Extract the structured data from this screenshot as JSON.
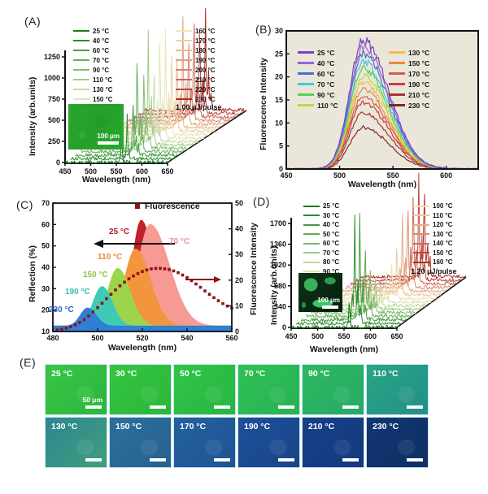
{
  "panels": {
    "A": {
      "label": "(A)"
    },
    "B": {
      "label": "(B)"
    },
    "C": {
      "label": "(C)"
    },
    "D": {
      "label": "(D)"
    },
    "E": {
      "label": "(E)"
    }
  },
  "chart_data": [
    {
      "id": "A",
      "panel_label": "(A)",
      "type": "line",
      "subtype": "waterfall",
      "xlabel": "Wavelength (nm)",
      "ylabel": "Intensity (arb.units)",
      "xlim": [
        450,
        650
      ],
      "xticks": [
        450,
        500,
        550,
        600,
        650
      ],
      "ylim": [
        0,
        1250
      ],
      "yticks": [
        0,
        250,
        500,
        750,
        1000,
        1250
      ],
      "annotation": "1.00 μJ/pulse",
      "inset_scale_label": "100 μm",
      "legend_split": 8,
      "series": [
        {
          "name": "25 °C",
          "color": "#1a7a1f",
          "peak_nm": 560,
          "peak_intensity": 420
        },
        {
          "name": "40 °C",
          "color": "#2e8b2e",
          "peak_nm": 561,
          "peak_intensity": 540
        },
        {
          "name": "60 °C",
          "color": "#4a9d46",
          "peak_nm": 562,
          "peak_intensity": 700
        },
        {
          "name": "70 °C",
          "color": "#66ae5c",
          "peak_nm": 560,
          "peak_intensity": 1250
        },
        {
          "name": "90 °C",
          "color": "#85bd74",
          "peak_nm": 563,
          "peak_intensity": 1020
        },
        {
          "name": "110 °C",
          "color": "#a5cc8c",
          "peak_nm": 561,
          "peak_intensity": 1350
        },
        {
          "name": "130 °C",
          "color": "#c3daa4",
          "peak_nm": 562,
          "peak_intensity": 950
        },
        {
          "name": "150 °C",
          "color": "#dde7ba",
          "peak_nm": 563,
          "peak_intensity": 1300
        },
        {
          "name": "160 °C",
          "color": "#f2e2b4",
          "peak_nm": 564,
          "peak_intensity": 1250
        },
        {
          "name": "170 °C",
          "color": "#edcfa0",
          "peak_nm": 566,
          "peak_intensity": 1050
        },
        {
          "name": "180 °C",
          "color": "#e7ba90",
          "peak_nm": 566,
          "peak_intensity": 980
        },
        {
          "name": "190 °C",
          "color": "#e0a282",
          "peak_nm": 567,
          "peak_intensity": 1230
        },
        {
          "name": "200 °C",
          "color": "#d78672",
          "peak_nm": 568,
          "peak_intensity": 1080
        },
        {
          "name": "210 °C",
          "color": "#ca655a",
          "peak_nm": 568,
          "peak_intensity": 1320
        },
        {
          "name": "220 °C",
          "color": "#bb4742",
          "peak_nm": 569,
          "peak_intensity": 1150
        },
        {
          "name": "230 °C",
          "color": "#ae2d22",
          "peak_nm": 570,
          "peak_intensity": 1180
        }
      ]
    },
    {
      "id": "B",
      "panel_label": "(B)",
      "type": "line",
      "xlabel": "Wavelength (nm)",
      "ylabel": "Fluorescence Intensity",
      "xlim": [
        450,
        630
      ],
      "xticks": [
        450,
        500,
        550,
        600
      ],
      "ylim": [
        0,
        30
      ],
      "yticks": [
        0,
        5,
        10,
        15,
        20,
        25,
        30
      ],
      "peak_nm": 522,
      "plot_bg": "#eae7da",
      "legend_split": 6,
      "series": [
        {
          "name": "25 °C",
          "color": "#7b3fb8",
          "peak_intensity": 28
        },
        {
          "name": "40 °C",
          "color": "#9a63d6",
          "peak_intensity": 26.5
        },
        {
          "name": "60 °C",
          "color": "#4a6fd4",
          "peak_intensity": 25
        },
        {
          "name": "70 °C",
          "color": "#45c8dc",
          "peak_intensity": 23.3
        },
        {
          "name": "90 °C",
          "color": "#62cc52",
          "peak_intensity": 21.8
        },
        {
          "name": "110 °C",
          "color": "#b7dc3e",
          "peak_intensity": 20.3
        },
        {
          "name": "130 °C",
          "color": "#eec04a",
          "peak_intensity": 18.8
        },
        {
          "name": "150 °C",
          "color": "#e58a4a",
          "peak_intensity": 17.3
        },
        {
          "name": "170 °C",
          "color": "#da5a43",
          "peak_intensity": 15.8
        },
        {
          "name": "190 °C",
          "color": "#c4423c",
          "peak_intensity": 14.5
        },
        {
          "name": "210 °C",
          "color": "#a33530",
          "peak_intensity": 12.2
        },
        {
          "name": "230 °C",
          "color": "#7c2a22",
          "peak_intensity": 9
        }
      ]
    },
    {
      "id": "C",
      "panel_label": "(C)",
      "type": "area+scatter",
      "xlabel": "Wavelength (nm)",
      "ylabel_left": "Reflection (%)",
      "ylabel_right": "Fluorescence Intensity",
      "xlim": [
        480,
        560
      ],
      "xticks": [
        480,
        500,
        520,
        540,
        560
      ],
      "ylim_left": [
        10,
        70
      ],
      "yticks_left": [
        10,
        20,
        30,
        40,
        50,
        60,
        70
      ],
      "ylim_right": [
        0,
        50
      ],
      "yticks_right": [
        0,
        10,
        20,
        30,
        40,
        50
      ],
      "legend_label": "Fluorescence",
      "baseline_reflection": 12.5,
      "reflection_peaks": [
        {
          "name": "25 °C",
          "color": "#c0202a",
          "label_color": "#b5191f",
          "center_nm": 519.5,
          "peak_reflection": 62,
          "sigma_l": 4,
          "sigma_r": 5.5
        },
        {
          "name": "70 °C",
          "color": "#f79a93",
          "label_color": "#f08d88",
          "center_nm": 523.5,
          "peak_reflection": 60,
          "sigma_l": 5.5,
          "sigma_r": 8.5
        },
        {
          "name": "110 °C",
          "color": "#f2953c",
          "label_color": "#e98a2e",
          "center_nm": 517,
          "peak_reflection": 48.5,
          "sigma_l": 5,
          "sigma_r": 6.5
        },
        {
          "name": "150 °C",
          "color": "#9ed44d",
          "label_color": "#86c53a",
          "center_nm": 509,
          "peak_reflection": 39.5,
          "sigma_l": 4.5,
          "sigma_r": 5.5
        },
        {
          "name": "190 °C",
          "color": "#3ecbb6",
          "label_color": "#2fc0b0",
          "center_nm": 502,
          "peak_reflection": 31,
          "sigma_l": 4,
          "sigma_r": 4.5
        },
        {
          "name": "230 °C",
          "color": "#2f7fd6",
          "label_color": "#2a62c4",
          "center_nm": 495.5,
          "peak_reflection": 21,
          "sigma_l": 3.2,
          "sigma_r": 3.8
        }
      ],
      "fluorescence_scatter": {
        "color": "#8b1515",
        "x_start_nm": 482,
        "x_step_nm": 2,
        "y": [
          0.6,
          0.9,
          1.3,
          1.9,
          2.6,
          3.5,
          4.6,
          6,
          7.6,
          9.3,
          11,
          12.8,
          14.5,
          16.2,
          17.8,
          19.2,
          20.5,
          21.6,
          22.6,
          23.4,
          24,
          24.4,
          24.6,
          24.6,
          24.4,
          24.1,
          23.6,
          22.9,
          22,
          21,
          19.8,
          18.5,
          17.2,
          15.8,
          14.5,
          13.2,
          12,
          10.9,
          9.9,
          9.1
        ]
      }
    },
    {
      "id": "D",
      "panel_label": "(D)",
      "type": "line",
      "subtype": "waterfall",
      "xlabel": "Wavelength (nm)",
      "ylabel": "Intensity (arb.units)",
      "xlim": [
        450,
        650
      ],
      "xticks": [
        450,
        500,
        550,
        600,
        650
      ],
      "ylim": [
        0,
        1700
      ],
      "yticks": [
        0,
        340,
        680,
        1020,
        1360,
        1700
      ],
      "annotation": "1.20 μJ/pulse",
      "inset_scale_label": "100 μm",
      "legend_split": 8,
      "series": [
        {
          "name": "25 °C",
          "color": "#1a7a1f",
          "peak_nm": 560,
          "peak_intensity": 520
        },
        {
          "name": "30 °C",
          "color": "#2e8b2e",
          "peak_nm": 561,
          "peak_intensity": 1750
        },
        {
          "name": "40 °C",
          "color": "#459a41",
          "peak_nm": 561,
          "peak_intensity": 1680
        },
        {
          "name": "50 °C",
          "color": "#61ab55",
          "peak_nm": 562,
          "peak_intensity": 1300
        },
        {
          "name": "60 °C",
          "color": "#7fba6c",
          "peak_nm": 562,
          "peak_intensity": 820
        },
        {
          "name": "70 °C",
          "color": "#9cc981",
          "peak_nm": 563,
          "peak_intensity": 620
        },
        {
          "name": "80 °C",
          "color": "#bcd79b",
          "peak_nm": 563,
          "peak_intensity": 430
        },
        {
          "name": "90 °C",
          "color": "#d9e5b2",
          "peak_nm": 564,
          "peak_intensity": 520
        },
        {
          "name": "100 °C",
          "color": "#f2e2b2",
          "peak_nm": 565,
          "peak_intensity": 700
        },
        {
          "name": "110 °C",
          "color": "#ecc99c",
          "peak_nm": 566,
          "peak_intensity": 920
        },
        {
          "name": "120 °C",
          "color": "#e3ad88",
          "peak_nm": 567,
          "peak_intensity": 1250
        },
        {
          "name": "130 °C",
          "color": "#d98d74",
          "peak_nm": 568,
          "peak_intensity": 1500
        },
        {
          "name": "140 °C",
          "color": "#cc6a58",
          "peak_nm": 569,
          "peak_intensity": 1680
        },
        {
          "name": "150 °C",
          "color": "#bd4a40",
          "peak_nm": 570,
          "peak_intensity": 1750
        },
        {
          "name": "160 °C",
          "color": "#ae2f24",
          "peak_nm": 571,
          "peak_intensity": 1600
        }
      ]
    },
    {
      "id": "E",
      "panel_label": "(E)",
      "type": "image-grid",
      "scale_label": "50 μm",
      "columns": 6,
      "tiles": [
        {
          "label": "25 °C",
          "color1": "#38c544",
          "color2": "#2bb63e"
        },
        {
          "label": "30 °C",
          "color1": "#35c43f",
          "color2": "#2ab73d"
        },
        {
          "label": "50 °C",
          "color1": "#32c447",
          "color2": "#28b644"
        },
        {
          "label": "70 °C",
          "color1": "#2fc052",
          "color2": "#27b257"
        },
        {
          "label": "90 °C",
          "color1": "#2db95f",
          "color2": "#26a967"
        },
        {
          "label": "110 °C",
          "color1": "#29a583",
          "color2": "#238f89"
        },
        {
          "label": "130 °C",
          "color1": "#2d8596",
          "color2": "#3f9f78"
        },
        {
          "label": "150 °C",
          "color1": "#2b6f9e",
          "color2": "#27628f"
        },
        {
          "label": "170 °C",
          "color1": "#23609f",
          "color2": "#1e5494"
        },
        {
          "label": "190 °C",
          "color1": "#1d5098",
          "color2": "#19458a"
        },
        {
          "label": "210 °C",
          "color1": "#17408a",
          "color2": "#143a7e"
        },
        {
          "label": "230 °C",
          "color1": "#123672",
          "color2": "#0f2f66"
        }
      ]
    }
  ]
}
